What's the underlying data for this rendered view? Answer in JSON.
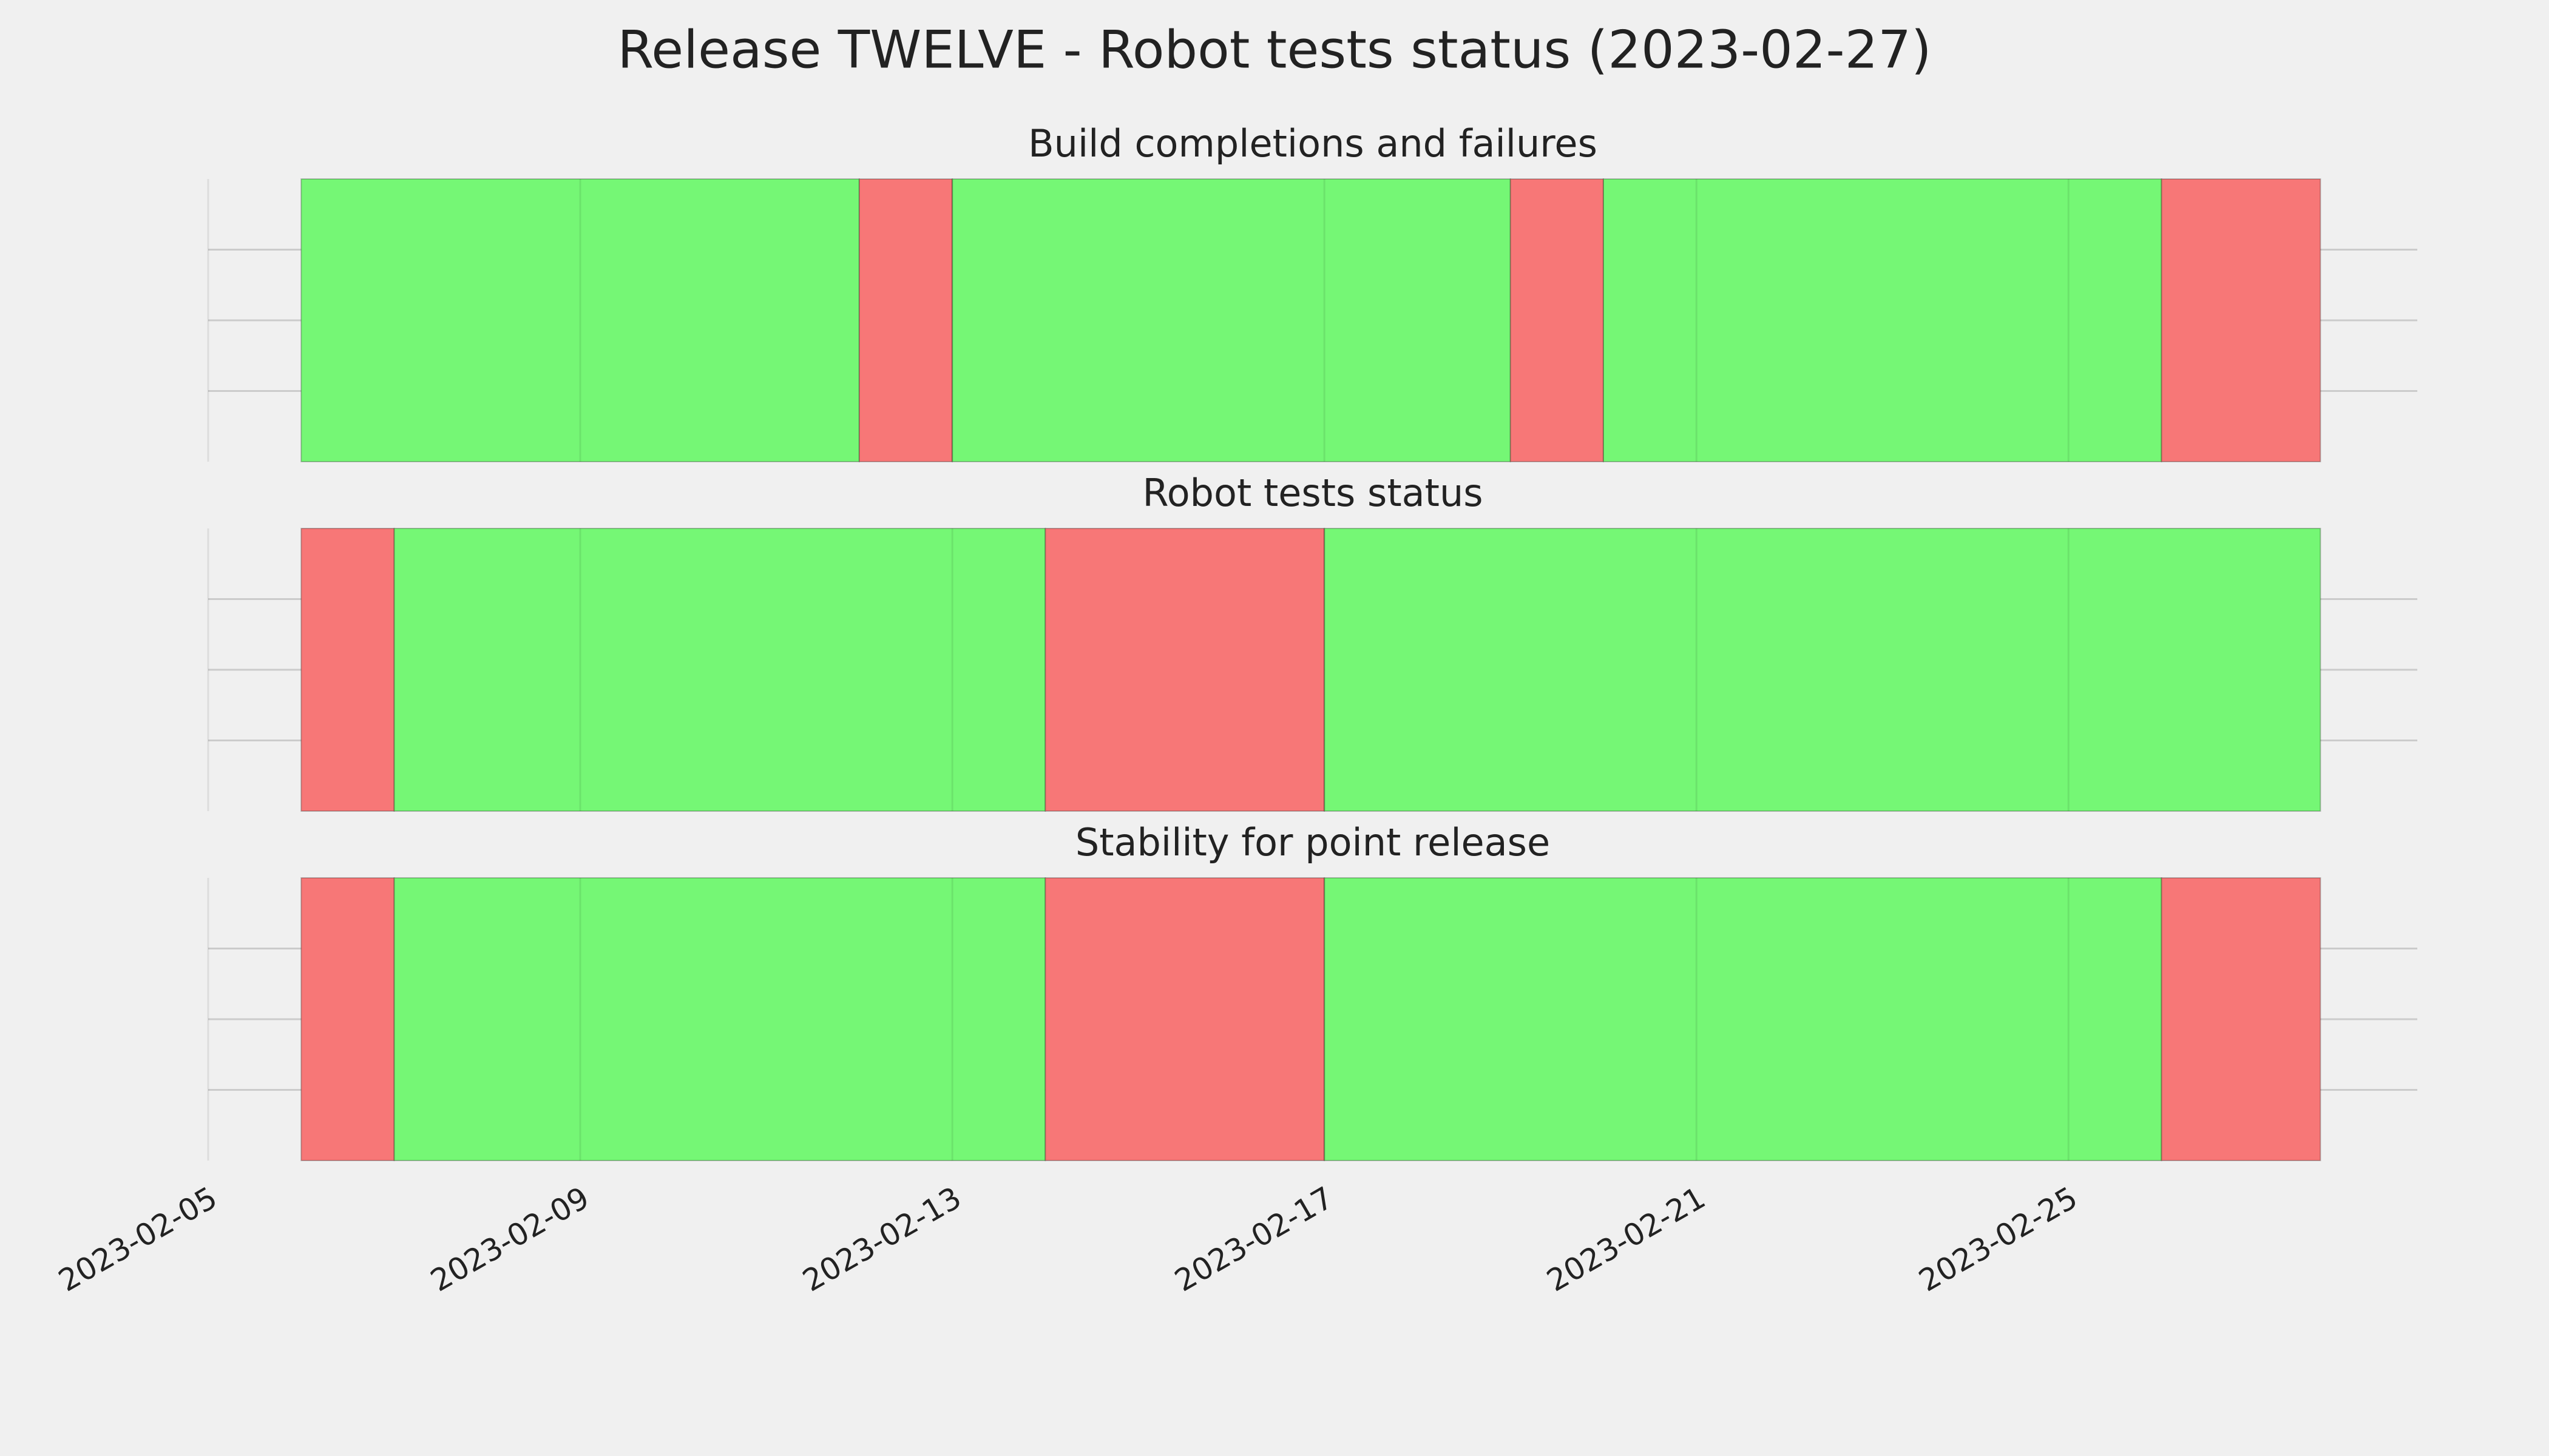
{
  "title": "Release TWELVE - Robot tests status (2023-02-27)",
  "chart_data": [
    {
      "type": "timeline",
      "title": "Build completions and failures",
      "segments": [
        {
          "start": "2023-02-06",
          "end": "2023-02-12",
          "color": "#75f775"
        },
        {
          "start": "2023-02-12",
          "end": "2023-02-13",
          "color": "#f77777"
        },
        {
          "start": "2023-02-13",
          "end": "2023-02-19",
          "color": "#75f775"
        },
        {
          "start": "2023-02-19",
          "end": "2023-02-20",
          "color": "#f77777"
        },
        {
          "start": "2023-02-20",
          "end": "2023-02-26",
          "color": "#75f775"
        },
        {
          "start": "2023-02-26",
          "end": "2023-02-27T17:00",
          "color": "#f77777"
        }
      ],
      "xlim": [
        "2023-02-05",
        "2023-02-28T18:00"
      ],
      "xticks": [
        "2023-02-05",
        "2023-02-09",
        "2023-02-13",
        "2023-02-17",
        "2023-02-21",
        "2023-02-25"
      ],
      "ylim": [
        0,
        1
      ],
      "yticks": [
        0.25,
        0.5,
        0.75
      ],
      "grid": true
    },
    {
      "type": "timeline",
      "title": "Robot tests status",
      "segments": [
        {
          "start": "2023-02-06",
          "end": "2023-02-07",
          "color": "#f77777"
        },
        {
          "start": "2023-02-07",
          "end": "2023-02-14",
          "color": "#75f775"
        },
        {
          "start": "2023-02-14",
          "end": "2023-02-17",
          "color": "#f77777"
        },
        {
          "start": "2023-02-17",
          "end": "2023-02-27T17:00",
          "color": "#75f775"
        }
      ],
      "xlim": [
        "2023-02-05",
        "2023-02-28T18:00"
      ],
      "xticks": [
        "2023-02-05",
        "2023-02-09",
        "2023-02-13",
        "2023-02-17",
        "2023-02-21",
        "2023-02-25"
      ],
      "ylim": [
        0,
        1
      ],
      "yticks": [
        0.25,
        0.5,
        0.75
      ],
      "grid": true
    },
    {
      "type": "timeline",
      "title": "Stability for point release",
      "segments": [
        {
          "start": "2023-02-06",
          "end": "2023-02-07",
          "color": "#f77777"
        },
        {
          "start": "2023-02-07",
          "end": "2023-02-14",
          "color": "#75f775"
        },
        {
          "start": "2023-02-14",
          "end": "2023-02-17",
          "color": "#f77777"
        },
        {
          "start": "2023-02-17",
          "end": "2023-02-26",
          "color": "#75f775"
        },
        {
          "start": "2023-02-26",
          "end": "2023-02-27T17:00",
          "color": "#f77777"
        }
      ],
      "xlim": [
        "2023-02-05",
        "2023-02-28T18:00"
      ],
      "xticks": [
        "2023-02-05",
        "2023-02-09",
        "2023-02-13",
        "2023-02-17",
        "2023-02-21",
        "2023-02-25"
      ],
      "ylim": [
        0,
        1
      ],
      "yticks": [
        0.25,
        0.5,
        0.75
      ],
      "grid": true
    }
  ]
}
